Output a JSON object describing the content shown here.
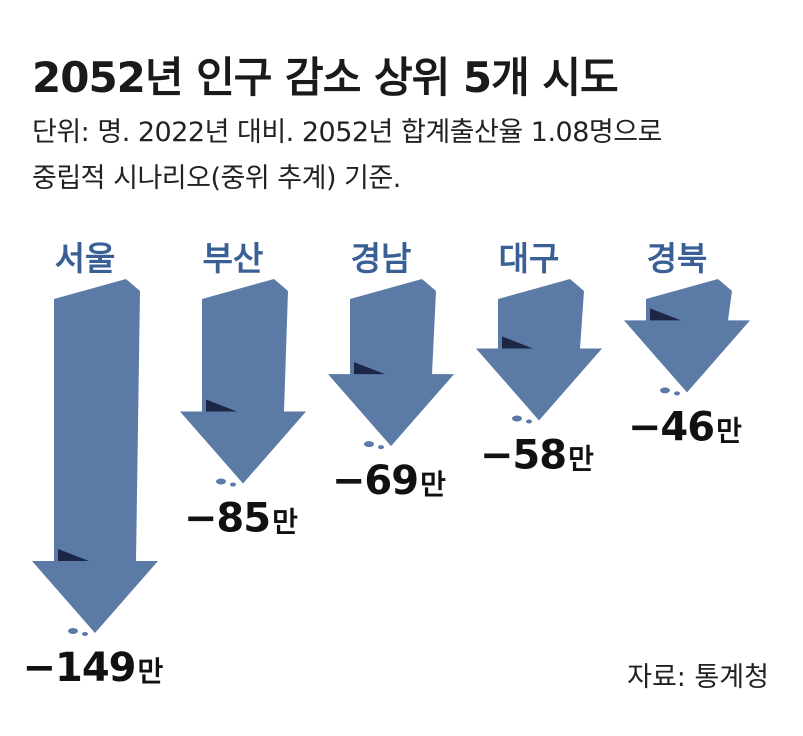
{
  "title": "2052년 인구 감소 상위 5개 시도",
  "subtitle_line1": "단위: 명. 2022년 대비. 2052년 합계출산율 1.08명으로",
  "subtitle_line2": "중립적 시나리오(중위 추계) 기준.",
  "source": "자료: 통계청",
  "colors": {
    "arrow": "#5b7aa6",
    "arrow_fold": "#1c2647",
    "label": "#3a5f95",
    "value": "#111111"
  },
  "chart_data": {
    "type": "bar",
    "categories": [
      "서울",
      "부산",
      "경남",
      "대구",
      "경북"
    ],
    "values": [
      -149,
      -85,
      -69,
      -58,
      -46
    ],
    "value_labels": [
      "−149",
      "−85",
      "−69",
      "−58",
      "−46"
    ],
    "unit": "만",
    "title": "2052년 인구 감소 상위 5개 시도",
    "xlabel": "",
    "ylabel": ""
  }
}
